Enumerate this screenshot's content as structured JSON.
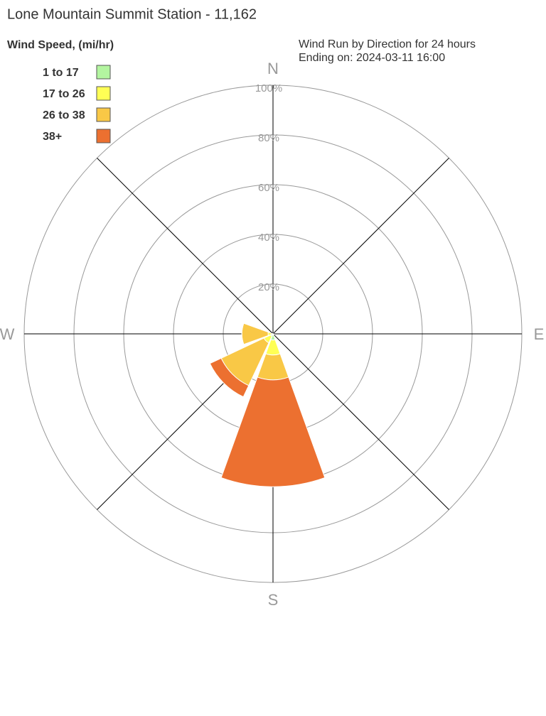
{
  "chart_data": {
    "type": "windrose",
    "title": "Lone Mountain Summit Station - 11,162",
    "legend_title": "Wind Speed, (mi/hr)",
    "subtitle": [
      "Wind Run by Direction for 24 hours",
      "Ending on: 2024-03-11 16:00"
    ],
    "categories": [
      "N",
      null,
      "E",
      null,
      "S",
      null,
      "W",
      null
    ],
    "series": [
      {
        "name": "1 to 17",
        "color": "#b3f5a0",
        "values": [
          0,
          0,
          0,
          0.5,
          2.5,
          1,
          0.5,
          0
        ]
      },
      {
        "name": "17 to 26",
        "color": "#ffff55",
        "values": [
          0,
          0,
          0,
          0,
          6,
          3,
          1.5,
          0
        ]
      },
      {
        "name": "26 to 38",
        "color": "#f9c846",
        "values": [
          0,
          0,
          0,
          0,
          10,
          19,
          10.5,
          0
        ]
      },
      {
        "name": "38+",
        "color": "#ec7030",
        "values": [
          0,
          0,
          0,
          0,
          43,
          5,
          0,
          0
        ]
      }
    ],
    "rlim": [
      0,
      100
    ],
    "rticks": [
      {
        "value": 20,
        "label": "20%"
      },
      {
        "value": 40,
        "label": "40%"
      },
      {
        "value": 60,
        "label": "60%"
      },
      {
        "value": 80,
        "label": "80%"
      },
      {
        "value": 100,
        "label": "100%"
      }
    ]
  }
}
